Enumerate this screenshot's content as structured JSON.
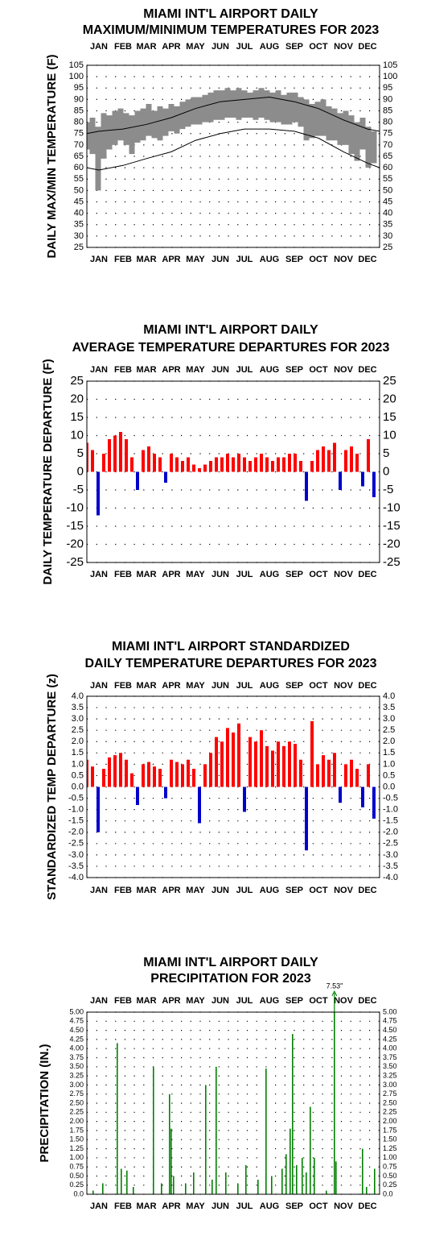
{
  "chart_data": [
    {
      "type": "line",
      "title": [
        "MIAMI INT'L AIRPORT DAILY",
        "MAXIMUM/MINIMUM TEMPERATURES FOR 2023"
      ],
      "y_label": "DAILY MAX/MIN TEMPERATURE (F)",
      "xlim": [
        1,
        365
      ],
      "xticks": [
        {
          "value": 16,
          "label": "JAN"
        },
        {
          "value": 46,
          "label": "FEB"
        },
        {
          "value": 75,
          "label": "MAR"
        },
        {
          "value": 106,
          "label": "APR"
        },
        {
          "value": 136,
          "label": "MAY"
        },
        {
          "value": 167,
          "label": "JUN"
        },
        {
          "value": 197,
          "label": "JUL"
        },
        {
          "value": 228,
          "label": "AUG"
        },
        {
          "value": 259,
          "label": "SEP"
        },
        {
          "value": 289,
          "label": "OCT"
        },
        {
          "value": 320,
          "label": "NOV"
        },
        {
          "value": 350,
          "label": "DEC"
        }
      ],
      "ylim": [
        25,
        105
      ],
      "yticks": [
        105,
        100,
        95,
        90,
        85,
        80,
        75,
        70,
        65,
        60,
        55,
        50,
        45,
        40,
        35,
        30,
        25
      ],
      "grid": true,
      "range": {
        "color": "#8c8c8c",
        "x": [
          1,
          8,
          15,
          22,
          29,
          36,
          43,
          50,
          57,
          64,
          71,
          78,
          85,
          92,
          99,
          106,
          113,
          120,
          127,
          134,
          141,
          148,
          155,
          162,
          169,
          176,
          183,
          190,
          197,
          204,
          211,
          218,
          225,
          232,
          239,
          246,
          253,
          260,
          267,
          274,
          281,
          288,
          295,
          302,
          309,
          316,
          323,
          330,
          337,
          344,
          351,
          358
        ],
        "high": [
          80,
          82,
          78,
          84,
          83,
          85,
          86,
          84,
          83,
          85,
          86,
          88,
          85,
          87,
          86,
          88,
          87,
          89,
          90,
          91,
          91,
          92,
          93,
          94,
          94,
          95,
          94,
          95,
          94,
          93,
          94,
          95,
          94,
          93,
          94,
          92,
          93,
          93,
          91,
          90,
          88,
          89,
          90,
          87,
          86,
          84,
          85,
          83,
          80,
          82,
          78,
          76
        ],
        "low": [
          68,
          66,
          50,
          64,
          68,
          70,
          72,
          70,
          66,
          71,
          72,
          74,
          73,
          72,
          74,
          76,
          75,
          77,
          78,
          79,
          79,
          80,
          80,
          81,
          81,
          82,
          82,
          81,
          82,
          82,
          81,
          82,
          81,
          80,
          80,
          79,
          79,
          80,
          78,
          72,
          73,
          74,
          74,
          72,
          72,
          70,
          70,
          66,
          63,
          68,
          60,
          62
        ]
      },
      "series": [
        {
          "color": "#000000",
          "x": [
            1,
            16,
            46,
            75,
            106,
            136,
            167,
            197,
            228,
            259,
            289,
            320,
            350,
            365
          ],
          "values": [
            75,
            76,
            77,
            79,
            82,
            86,
            89,
            90,
            91,
            89,
            86,
            81,
            77,
            76
          ]
        },
        {
          "color": "#000000",
          "x": [
            1,
            16,
            46,
            75,
            106,
            136,
            167,
            197,
            228,
            259,
            289,
            320,
            350,
            365
          ],
          "values": [
            60,
            59,
            61,
            64,
            67,
            72,
            75,
            77,
            77,
            76,
            73,
            67,
            62,
            60
          ]
        }
      ]
    },
    {
      "type": "bar",
      "title": [
        "MIAMI INT'L AIRPORT DAILY",
        "AVERAGE TEMPERATURE DEPARTURES FOR 2023"
      ],
      "y_label": "DAILY TEMPERATURE DEPARTURE (F)",
      "xlim": [
        1,
        365
      ],
      "xticks": [
        {
          "value": 16,
          "label": "JAN"
        },
        {
          "value": 46,
          "label": "FEB"
        },
        {
          "value": 75,
          "label": "MAR"
        },
        {
          "value": 106,
          "label": "APR"
        },
        {
          "value": 136,
          "label": "MAY"
        },
        {
          "value": 167,
          "label": "JUN"
        },
        {
          "value": 197,
          "label": "JUL"
        },
        {
          "value": 228,
          "label": "AUG"
        },
        {
          "value": 259,
          "label": "SEP"
        },
        {
          "value": 289,
          "label": "OCT"
        },
        {
          "value": 320,
          "label": "NOV"
        },
        {
          "value": 350,
          "label": "DEC"
        }
      ],
      "ylim": [
        -25,
        25
      ],
      "yticks": [
        25,
        20,
        15,
        10,
        5,
        0,
        -5,
        -10,
        -15,
        -20,
        -25
      ],
      "grid": true,
      "positive_color": "#ff0000",
      "negative_color": "#0000cc",
      "x": [
        1,
        8,
        15,
        22,
        29,
        36,
        43,
        50,
        57,
        64,
        71,
        78,
        85,
        92,
        99,
        106,
        113,
        120,
        127,
        134,
        141,
        148,
        155,
        162,
        169,
        176,
        183,
        190,
        197,
        204,
        211,
        218,
        225,
        232,
        239,
        246,
        253,
        260,
        267,
        274,
        281,
        288,
        295,
        302,
        309,
        316,
        323,
        330,
        337,
        344,
        351,
        358
      ],
      "values": [
        8,
        6,
        -12,
        5,
        9,
        10,
        11,
        9,
        4,
        -5,
        6,
        7,
        5,
        4,
        -3,
        5,
        4,
        3,
        4,
        2,
        1,
        2,
        3,
        4,
        4,
        5,
        4,
        5,
        4,
        3,
        4,
        5,
        4,
        3,
        4,
        4,
        5,
        5,
        3,
        -8,
        3,
        6,
        7,
        6,
        8,
        -5,
        6,
        7,
        5,
        -4,
        9,
        -7
      ]
    },
    {
      "type": "bar",
      "title": [
        "MIAMI INT'L AIRPORT STANDARDIZED",
        "DAILY TEMPERATURE DEPARTURES FOR 2023"
      ],
      "y_label": "STANDARDIZED TEMP DEPARTURE (z)",
      "xlim": [
        1,
        365
      ],
      "xticks": [
        {
          "value": 16,
          "label": "JAN"
        },
        {
          "value": 46,
          "label": "FEB"
        },
        {
          "value": 75,
          "label": "MAR"
        },
        {
          "value": 106,
          "label": "APR"
        },
        {
          "value": 136,
          "label": "MAY"
        },
        {
          "value": 167,
          "label": "JUN"
        },
        {
          "value": 197,
          "label": "JUL"
        },
        {
          "value": 228,
          "label": "AUG"
        },
        {
          "value": 259,
          "label": "SEP"
        },
        {
          "value": 289,
          "label": "OCT"
        },
        {
          "value": 320,
          "label": "NOV"
        },
        {
          "value": 350,
          "label": "DEC"
        }
      ],
      "ylim": [
        -4,
        4
      ],
      "yticks": [
        {
          "value": 4,
          "label": "4.0"
        },
        {
          "value": 3.5,
          "label": "3.5"
        },
        {
          "value": 3,
          "label": "3.0"
        },
        {
          "value": 2.5,
          "label": "2.5"
        },
        {
          "value": 2,
          "label": "2.0"
        },
        {
          "value": 1.5,
          "label": "1.5"
        },
        {
          "value": 1,
          "label": "1.0"
        },
        {
          "value": 0.5,
          "label": "0.5"
        },
        {
          "value": 0,
          "label": "0.0"
        },
        {
          "value": -0.5,
          "label": "-0.5"
        },
        {
          "value": -1,
          "label": "-1.0"
        },
        {
          "value": -1.5,
          "label": "-1.5"
        },
        {
          "value": -2,
          "label": "-2.0"
        },
        {
          "value": -2.5,
          "label": "-2.5"
        },
        {
          "value": -3,
          "label": "-3.0"
        },
        {
          "value": -3.5,
          "label": "-3.5"
        },
        {
          "value": -4,
          "label": "-4.0"
        }
      ],
      "grid": true,
      "positive_color": "#ff0000",
      "negative_color": "#0000cc",
      "x": [
        1,
        8,
        15,
        22,
        29,
        36,
        43,
        50,
        57,
        64,
        71,
        78,
        85,
        92,
        99,
        106,
        113,
        120,
        127,
        134,
        141,
        148,
        155,
        162,
        169,
        176,
        183,
        190,
        197,
        204,
        211,
        218,
        225,
        232,
        239,
        246,
        253,
        260,
        267,
        274,
        281,
        288,
        295,
        302,
        309,
        316,
        323,
        330,
        337,
        344,
        351,
        358
      ],
      "values": [
        1.2,
        0.9,
        -2.0,
        0.8,
        1.3,
        1.4,
        1.5,
        1.2,
        0.6,
        -0.8,
        1.0,
        1.1,
        0.9,
        0.8,
        -0.5,
        1.2,
        1.1,
        1.0,
        1.2,
        0.8,
        -1.6,
        1.0,
        1.5,
        2.2,
        2.0,
        2.6,
        2.4,
        2.8,
        -1.1,
        2.2,
        2.0,
        2.5,
        1.8,
        1.6,
        2.0,
        1.8,
        2.0,
        1.9,
        1.2,
        -2.8,
        2.9,
        1.0,
        1.4,
        1.2,
        1.5,
        -0.7,
        1.0,
        1.2,
        0.8,
        -0.9,
        1.0,
        -1.4
      ]
    },
    {
      "type": "bar",
      "title": [
        "MIAMI INT'L AIRPORT DAILY",
        "PRECIPITATION FOR 2023"
      ],
      "y_label": "PRECIPITATION (IN.)",
      "xlim": [
        1,
        365
      ],
      "xticks": [
        {
          "value": 16,
          "label": "JAN"
        },
        {
          "value": 46,
          "label": "FEB"
        },
        {
          "value": 75,
          "label": "MAR"
        },
        {
          "value": 106,
          "label": "APR"
        },
        {
          "value": 136,
          "label": "MAY"
        },
        {
          "value": 167,
          "label": "JUN"
        },
        {
          "value": 197,
          "label": "JUL"
        },
        {
          "value": 228,
          "label": "AUG"
        },
        {
          "value": 259,
          "label": "SEP"
        },
        {
          "value": 289,
          "label": "OCT"
        },
        {
          "value": 320,
          "label": "NOV"
        },
        {
          "value": 350,
          "label": "DEC"
        }
      ],
      "ylim": [
        0,
        5
      ],
      "yticks": [
        {
          "value": 5,
          "label": "5.00"
        },
        {
          "value": 4.75,
          "label": "4.75"
        },
        {
          "value": 4.5,
          "label": "4.50"
        },
        {
          "value": 4.25,
          "label": "4.25"
        },
        {
          "value": 4,
          "label": "4.00"
        },
        {
          "value": 3.75,
          "label": "3.75"
        },
        {
          "value": 3.5,
          "label": "3.50"
        },
        {
          "value": 3.25,
          "label": "3.25"
        },
        {
          "value": 3,
          "label": "3.00"
        },
        {
          "value": 2.75,
          "label": "2.75"
        },
        {
          "value": 2.5,
          "label": "2.50"
        },
        {
          "value": 2.25,
          "label": "2.25"
        },
        {
          "value": 2,
          "label": "2.00"
        },
        {
          "value": 1.75,
          "label": "1.75"
        },
        {
          "value": 1.5,
          "label": "1.50"
        },
        {
          "value": 1.25,
          "label": "1.25"
        },
        {
          "value": 1,
          "label": "1.00"
        },
        {
          "value": 0.75,
          "label": "0.75"
        },
        {
          "value": 0.5,
          "label": "0.50"
        },
        {
          "value": 0.25,
          "label": "0.25"
        },
        {
          "value": 0,
          "label": "0.0"
        }
      ],
      "grid": true,
      "color": "#008000",
      "x": [
        10,
        22,
        40,
        45,
        52,
        60,
        85,
        95,
        105,
        107,
        110,
        125,
        135,
        150,
        158,
        163,
        175,
        190,
        200,
        215,
        225,
        232,
        245,
        250,
        255,
        258,
        263,
        270,
        275,
        280,
        285,
        300,
        310,
        312,
        345,
        350,
        360
      ],
      "values": [
        0.1,
        0.3,
        4.15,
        0.7,
        0.65,
        0.2,
        3.5,
        0.3,
        2.75,
        1.8,
        0.5,
        0.3,
        0.6,
        3.0,
        0.4,
        3.5,
        0.6,
        0.3,
        0.8,
        0.4,
        3.45,
        0.5,
        0.7,
        1.1,
        1.8,
        4.4,
        0.8,
        1.0,
        0.6,
        2.4,
        1.0,
        0.1,
        7.53,
        0.9,
        1.25,
        0.2,
        0.7
      ],
      "value_labels": [
        null,
        null,
        null,
        null,
        null,
        null,
        null,
        null,
        null,
        null,
        null,
        null,
        null,
        null,
        null,
        null,
        null,
        null,
        null,
        null,
        null,
        null,
        null,
        null,
        null,
        null,
        null,
        null,
        null,
        null,
        null,
        null,
        "7.53\"",
        null,
        null,
        null,
        null
      ]
    }
  ]
}
